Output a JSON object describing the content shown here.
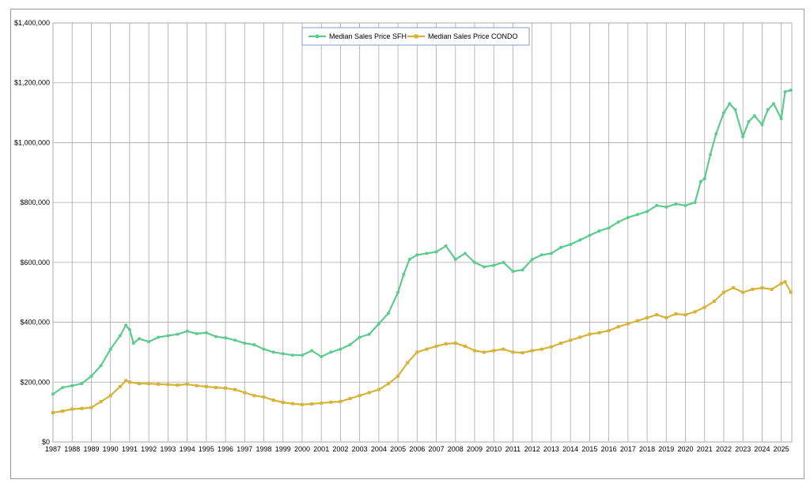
{
  "chart_data": {
    "type": "line",
    "title": "",
    "xlabel": "",
    "ylabel": "",
    "x_ticks": [
      "1987",
      "1988",
      "1989",
      "1990",
      "1991",
      "1992",
      "1993",
      "1994",
      "1995",
      "1996",
      "1997",
      "1998",
      "1999",
      "2000",
      "2001",
      "2002",
      "2003",
      "2004",
      "2005",
      "2006",
      "2007",
      "2008",
      "2009",
      "2010",
      "2011",
      "2012",
      "2013",
      "2014",
      "2015",
      "2016",
      "2017",
      "2018",
      "2019",
      "2020",
      "2021",
      "2022",
      "2023",
      "2024",
      "2025"
    ],
    "xlim": [
      1987,
      2025.55
    ],
    "y_ticks": [
      "$0",
      "$200,000",
      "$400,000",
      "$600,000",
      "$800,000",
      "$1,000,000",
      "$1,200,000",
      "$1,400,000"
    ],
    "ylim": [
      0,
      1400000
    ],
    "grid": "vertical and horizontal gridlines",
    "legend_position": "top-center",
    "series": [
      {
        "name": "Median Sales Price SFH",
        "color": "#5dcb8e",
        "points": [
          [
            1987.0,
            160000
          ],
          [
            1987.5,
            182000
          ],
          [
            1988.0,
            188000
          ],
          [
            1988.5,
            195000
          ],
          [
            1989.0,
            220000
          ],
          [
            1989.5,
            255000
          ],
          [
            1990.0,
            310000
          ],
          [
            1990.5,
            355000
          ],
          [
            1990.8,
            390000
          ],
          [
            1991.0,
            375000
          ],
          [
            1991.2,
            330000
          ],
          [
            1991.5,
            345000
          ],
          [
            1992.0,
            335000
          ],
          [
            1992.5,
            350000
          ],
          [
            1993.0,
            355000
          ],
          [
            1993.5,
            360000
          ],
          [
            1994.0,
            370000
          ],
          [
            1994.5,
            362000
          ],
          [
            1995.0,
            365000
          ],
          [
            1995.5,
            352000
          ],
          [
            1996.0,
            348000
          ],
          [
            1996.5,
            340000
          ],
          [
            1997.0,
            330000
          ],
          [
            1997.5,
            325000
          ],
          [
            1998.0,
            310000
          ],
          [
            1998.5,
            300000
          ],
          [
            1999.0,
            295000
          ],
          [
            1999.5,
            290000
          ],
          [
            2000.0,
            290000
          ],
          [
            2000.5,
            305000
          ],
          [
            2001.0,
            285000
          ],
          [
            2001.5,
            300000
          ],
          [
            2002.0,
            310000
          ],
          [
            2002.5,
            325000
          ],
          [
            2003.0,
            350000
          ],
          [
            2003.5,
            360000
          ],
          [
            2004.0,
            395000
          ],
          [
            2004.5,
            430000
          ],
          [
            2005.0,
            500000
          ],
          [
            2005.3,
            560000
          ],
          [
            2005.6,
            610000
          ],
          [
            2006.0,
            625000
          ],
          [
            2006.5,
            630000
          ],
          [
            2007.0,
            635000
          ],
          [
            2007.5,
            655000
          ],
          [
            2008.0,
            610000
          ],
          [
            2008.5,
            630000
          ],
          [
            2009.0,
            600000
          ],
          [
            2009.5,
            585000
          ],
          [
            2010.0,
            590000
          ],
          [
            2010.5,
            600000
          ],
          [
            2011.0,
            570000
          ],
          [
            2011.5,
            575000
          ],
          [
            2012.0,
            610000
          ],
          [
            2012.5,
            625000
          ],
          [
            2013.0,
            630000
          ],
          [
            2013.5,
            650000
          ],
          [
            2014.0,
            660000
          ],
          [
            2014.5,
            675000
          ],
          [
            2015.0,
            690000
          ],
          [
            2015.5,
            705000
          ],
          [
            2016.0,
            715000
          ],
          [
            2016.5,
            735000
          ],
          [
            2017.0,
            750000
          ],
          [
            2017.5,
            760000
          ],
          [
            2018.0,
            770000
          ],
          [
            2018.5,
            790000
          ],
          [
            2019.0,
            785000
          ],
          [
            2019.5,
            795000
          ],
          [
            2020.0,
            790000
          ],
          [
            2020.5,
            800000
          ],
          [
            2020.8,
            870000
          ],
          [
            2021.0,
            880000
          ],
          [
            2021.3,
            960000
          ],
          [
            2021.6,
            1030000
          ],
          [
            2022.0,
            1100000
          ],
          [
            2022.3,
            1130000
          ],
          [
            2022.6,
            1110000
          ],
          [
            2023.0,
            1020000
          ],
          [
            2023.3,
            1070000
          ],
          [
            2023.6,
            1090000
          ],
          [
            2024.0,
            1060000
          ],
          [
            2024.3,
            1110000
          ],
          [
            2024.6,
            1130000
          ],
          [
            2025.0,
            1080000
          ],
          [
            2025.2,
            1170000
          ],
          [
            2025.5,
            1175000
          ]
        ]
      },
      {
        "name": "Median Sales Price CONDO",
        "color": "#d6b43a",
        "points": [
          [
            1987.0,
            98000
          ],
          [
            1987.5,
            103000
          ],
          [
            1988.0,
            110000
          ],
          [
            1988.5,
            112000
          ],
          [
            1989.0,
            115000
          ],
          [
            1989.5,
            135000
          ],
          [
            1990.0,
            155000
          ],
          [
            1990.5,
            185000
          ],
          [
            1990.8,
            205000
          ],
          [
            1991.0,
            200000
          ],
          [
            1991.5,
            195000
          ],
          [
            1992.0,
            195000
          ],
          [
            1992.5,
            193000
          ],
          [
            1993.0,
            192000
          ],
          [
            1993.5,
            190000
          ],
          [
            1994.0,
            193000
          ],
          [
            1994.5,
            188000
          ],
          [
            1995.0,
            185000
          ],
          [
            1995.5,
            182000
          ],
          [
            1996.0,
            180000
          ],
          [
            1996.5,
            175000
          ],
          [
            1997.0,
            165000
          ],
          [
            1997.5,
            155000
          ],
          [
            1998.0,
            150000
          ],
          [
            1998.5,
            140000
          ],
          [
            1999.0,
            132000
          ],
          [
            1999.5,
            128000
          ],
          [
            2000.0,
            125000
          ],
          [
            2000.5,
            127000
          ],
          [
            2001.0,
            130000
          ],
          [
            2001.5,
            133000
          ],
          [
            2002.0,
            135000
          ],
          [
            2002.5,
            145000
          ],
          [
            2003.0,
            155000
          ],
          [
            2003.5,
            165000
          ],
          [
            2004.0,
            175000
          ],
          [
            2004.5,
            195000
          ],
          [
            2005.0,
            220000
          ],
          [
            2005.5,
            265000
          ],
          [
            2006.0,
            300000
          ],
          [
            2006.5,
            310000
          ],
          [
            2007.0,
            320000
          ],
          [
            2007.5,
            328000
          ],
          [
            2008.0,
            330000
          ],
          [
            2008.5,
            320000
          ],
          [
            2009.0,
            305000
          ],
          [
            2009.5,
            300000
          ],
          [
            2010.0,
            305000
          ],
          [
            2010.5,
            310000
          ],
          [
            2011.0,
            300000
          ],
          [
            2011.5,
            298000
          ],
          [
            2012.0,
            305000
          ],
          [
            2012.5,
            310000
          ],
          [
            2013.0,
            318000
          ],
          [
            2013.5,
            330000
          ],
          [
            2014.0,
            340000
          ],
          [
            2014.5,
            350000
          ],
          [
            2015.0,
            360000
          ],
          [
            2015.5,
            365000
          ],
          [
            2016.0,
            372000
          ],
          [
            2016.5,
            385000
          ],
          [
            2017.0,
            395000
          ],
          [
            2017.5,
            405000
          ],
          [
            2018.0,
            415000
          ],
          [
            2018.5,
            425000
          ],
          [
            2019.0,
            415000
          ],
          [
            2019.5,
            428000
          ],
          [
            2020.0,
            425000
          ],
          [
            2020.5,
            435000
          ],
          [
            2021.0,
            450000
          ],
          [
            2021.5,
            470000
          ],
          [
            2022.0,
            500000
          ],
          [
            2022.5,
            515000
          ],
          [
            2023.0,
            500000
          ],
          [
            2023.5,
            510000
          ],
          [
            2024.0,
            515000
          ],
          [
            2024.5,
            510000
          ],
          [
            2025.0,
            530000
          ],
          [
            2025.2,
            535000
          ],
          [
            2025.5,
            500000
          ]
        ]
      }
    ]
  }
}
